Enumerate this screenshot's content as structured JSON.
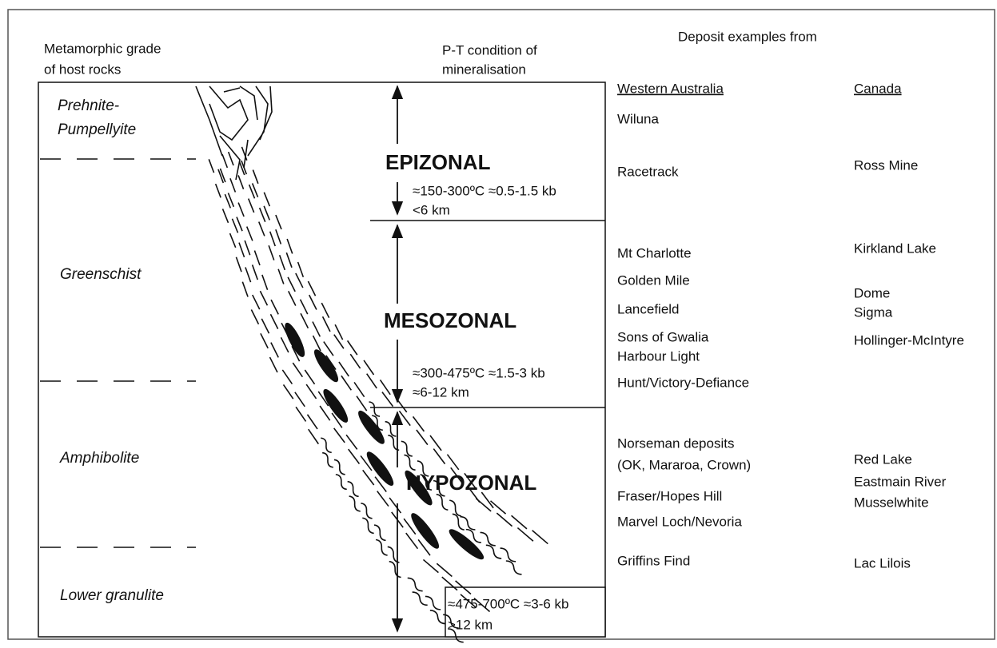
{
  "headers": {
    "grade": [
      "Metamorphic grade",
      "of host rocks"
    ],
    "pt": [
      "P-T condition of",
      "mineralisation"
    ],
    "deposits": "Deposit examples from",
    "western_australia": "Western Australia",
    "canada": "Canada"
  },
  "grades": [
    [
      "Prehnite-",
      "Pumpellyite"
    ],
    [
      "Greenschist"
    ],
    [
      "Amphibolite"
    ],
    [
      "Lower granulite"
    ]
  ],
  "zones": [
    {
      "name": "EPIZONAL",
      "conditions": "≈150-300ºC ≈0.5-1.5 kb",
      "depth": "<6 km"
    },
    {
      "name": "MESOZONAL",
      "conditions": "≈300-475ºC ≈1.5-3 kb",
      "depth": "≈6-12 km"
    },
    {
      "name": "HYPOZONAL",
      "conditions": "≈475-700ºC ≈3-6 kb",
      "depth": ">12 km"
    }
  ],
  "deposits": {
    "western_australia": [
      "Wiluna",
      "Racetrack",
      "Mt Charlotte",
      "Golden Mile",
      "Lancefield",
      "Sons of Gwalia",
      "Harbour Light",
      "Hunt/Victory-Defiance",
      "Norseman deposits",
      "(OK, Mararoa, Crown)",
      "Fraser/Hopes Hill",
      "Marvel Loch/Nevoria",
      "Griffins Find"
    ],
    "canada": [
      "Ross Mine",
      "Kirkland Lake",
      "Dome",
      "Sigma",
      "Hollinger-McIntyre",
      "Red Lake",
      "Eastmain River",
      "Musselwhite",
      "Lac Lilois"
    ]
  }
}
